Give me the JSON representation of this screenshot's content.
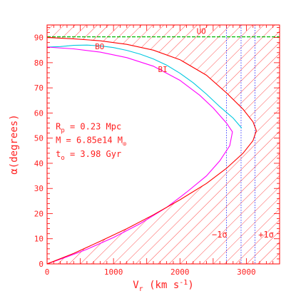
{
  "chart_data": {
    "type": "line",
    "xlabel": {
      "main": "V",
      "sub": "r",
      "rest": " (km s",
      "sup": "-1",
      "end": ")"
    },
    "ylabel": "α(degrees)",
    "xlim": [
      0,
      3500
    ],
    "ylim": [
      0,
      95
    ],
    "x_ticks": [
      0,
      1000,
      2000,
      3000
    ],
    "y_ticks": [
      0,
      10,
      20,
      30,
      40,
      50,
      60,
      70,
      80,
      90
    ],
    "grid": false,
    "annotations": {
      "rp": {
        "main": "R",
        "sub": "p",
        "rest": " = 0.23 Mpc"
      },
      "mass": {
        "main": "M = 6.85e14 M",
        "sub": "⊙"
      },
      "time": {
        "main": "t",
        "sub": "o",
        "rest": " = 3.98 Gyr"
      },
      "minus_sigma": "−1σ",
      "plus_sigma": "+1σ"
    },
    "series": [
      {
        "name": "UO",
        "color": "#00bb00",
        "points": [
          [
            0,
            90.3
          ],
          [
            3500,
            90.3
          ]
        ]
      },
      {
        "name": "BO",
        "color": "#00c8e0",
        "points": [
          [
            0,
            86.2
          ],
          [
            200,
            86.4
          ],
          [
            400,
            86.9
          ],
          [
            600,
            87.0
          ],
          [
            800,
            86.7
          ],
          [
            1000,
            86.0
          ],
          [
            1200,
            84.9
          ],
          [
            1400,
            83.4
          ],
          [
            1600,
            81.5
          ],
          [
            1800,
            79.0
          ],
          [
            2000,
            75.8
          ],
          [
            2200,
            72.0
          ],
          [
            2400,
            67.5
          ],
          [
            2600,
            62.5
          ],
          [
            2800,
            58.0
          ],
          [
            2930,
            54.0
          ]
        ]
      },
      {
        "name": "BI",
        "color": "#ff00ff",
        "points": [
          [
            0,
            86.2
          ],
          [
            400,
            85.5
          ],
          [
            800,
            84.2
          ],
          [
            1200,
            82.0
          ],
          [
            1600,
            78.6
          ],
          [
            2000,
            73.0
          ],
          [
            2300,
            67.0
          ],
          [
            2500,
            62.0
          ],
          [
            2700,
            56.0
          ],
          [
            2790,
            52.5
          ],
          [
            2750,
            47.0
          ],
          [
            2600,
            41.0
          ],
          [
            2400,
            35.0
          ],
          [
            2100,
            28.5
          ],
          [
            1800,
            22.5
          ],
          [
            1400,
            16.0
          ],
          [
            1000,
            10.5
          ],
          [
            600,
            5.8
          ],
          [
            300,
            2.8
          ],
          [
            0,
            0
          ]
        ]
      },
      {
        "name": "",
        "color": "#ff0000",
        "points": [
          [
            0,
            90.0
          ],
          [
            400,
            89.5
          ],
          [
            800,
            88.7
          ],
          [
            1200,
            87.3
          ],
          [
            1600,
            85.0
          ],
          [
            2000,
            81.2
          ],
          [
            2400,
            75.0
          ],
          [
            2700,
            68.0
          ],
          [
            2950,
            61.5
          ],
          [
            3100,
            56.5
          ],
          [
            3150,
            53.0
          ],
          [
            3100,
            49.0
          ],
          [
            2950,
            44.0
          ],
          [
            2700,
            38.0
          ],
          [
            2400,
            32.0
          ],
          [
            2000,
            25.5
          ],
          [
            1600,
            19.5
          ],
          [
            1200,
            14.0
          ],
          [
            800,
            9.0
          ],
          [
            400,
            4.2
          ],
          [
            0,
            0
          ]
        ]
      }
    ],
    "vlines": [
      {
        "x": 2700,
        "role": "-1σ",
        "color": "#3030ff"
      },
      {
        "x": 2920,
        "role": "mean",
        "color": "#3030ff"
      },
      {
        "x": 3130,
        "role": "+1σ",
        "color": "#3030ff"
      }
    ],
    "hatched_regions": "outside red boundary curve",
    "curve_labels": {
      "UO": "UO",
      "BO": "BO",
      "BI": "BI"
    },
    "colors": {
      "frame": "#ff0000",
      "text": "#ff2020",
      "hatch": "#ff2020"
    }
  }
}
